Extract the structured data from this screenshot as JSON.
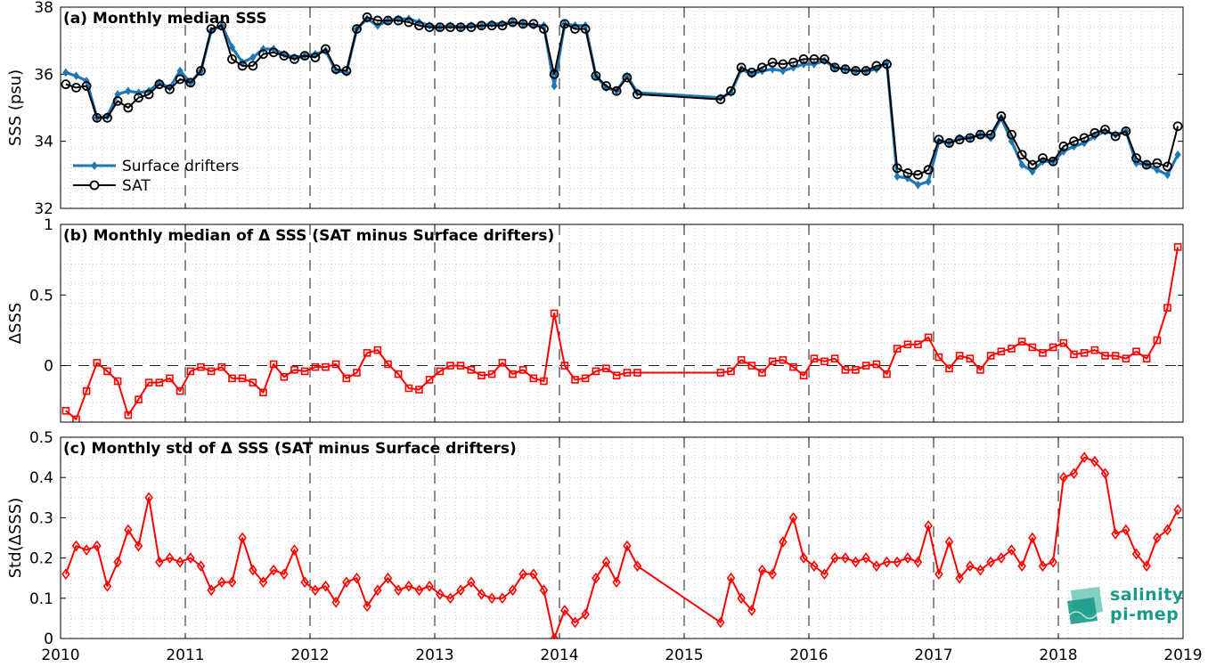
{
  "logo": {
    "line1": "salinity",
    "line2": "pi-mep",
    "color": "#1a9a8a"
  },
  "colors": {
    "drifters": "#1f77b4",
    "sat": "#000000",
    "delta": "#ff0000",
    "grid": "#b0b0b0"
  },
  "chart_data": [
    {
      "type": "line",
      "title": "(a) Monthly median SSS",
      "ylabel": "SSS (psu)",
      "xlabel": "",
      "xlim": [
        2010,
        2019
      ],
      "ylim": [
        32,
        38
      ],
      "yticks": [
        32,
        34,
        36,
        38
      ],
      "xticks": [
        2010,
        2011,
        2012,
        2013,
        2014,
        2015,
        2016,
        2017,
        2018,
        2019
      ],
      "grid": "dotted",
      "legend_position": "bottom-left",
      "x": [
        2010.042,
        2010.125,
        2010.208,
        2010.292,
        2010.375,
        2010.458,
        2010.542,
        2010.625,
        2010.708,
        2010.792,
        2010.875,
        2010.958,
        2011.042,
        2011.125,
        2011.208,
        2011.292,
        2011.375,
        2011.458,
        2011.542,
        2011.625,
        2011.708,
        2011.792,
        2011.875,
        2011.958,
        2012.042,
        2012.125,
        2012.208,
        2012.292,
        2012.375,
        2012.458,
        2012.542,
        2012.625,
        2012.708,
        2012.792,
        2012.875,
        2012.958,
        2013.042,
        2013.125,
        2013.208,
        2013.292,
        2013.375,
        2013.458,
        2013.542,
        2013.625,
        2013.708,
        2013.792,
        2013.875,
        2013.958,
        2014.042,
        2014.125,
        2014.208,
        2014.292,
        2014.375,
        2014.458,
        2014.542,
        2014.625,
        2015.292,
        2015.375,
        2015.458,
        2015.542,
        2015.625,
        2015.708,
        2015.792,
        2015.875,
        2015.958,
        2016.042,
        2016.125,
        2016.208,
        2016.292,
        2016.375,
        2016.458,
        2016.542,
        2016.625,
        2016.708,
        2016.792,
        2016.875,
        2016.958,
        2017.042,
        2017.125,
        2017.208,
        2017.292,
        2017.375,
        2017.458,
        2017.542,
        2017.625,
        2017.708,
        2017.792,
        2017.875,
        2017.958,
        2018.042,
        2018.125,
        2018.208,
        2018.292,
        2018.375,
        2018.458,
        2018.542,
        2018.625,
        2018.708,
        2018.792,
        2018.875,
        2018.958
      ],
      "series": [
        {
          "name": "Surface drifters",
          "marker": "diamond",
          "color": "#1f77b4",
          "values": [
            36.05,
            35.95,
            35.8,
            34.7,
            34.75,
            35.4,
            35.5,
            35.45,
            35.5,
            35.75,
            35.6,
            36.1,
            35.75,
            36.1,
            37.3,
            37.45,
            36.8,
            36.35,
            36.5,
            36.75,
            36.75,
            36.6,
            36.5,
            36.55,
            36.6,
            36.7,
            36.1,
            36.05,
            37.35,
            37.65,
            37.45,
            37.6,
            37.65,
            37.65,
            37.55,
            37.45,
            37.4,
            37.45,
            37.4,
            37.45,
            37.45,
            37.5,
            37.5,
            37.55,
            37.5,
            37.45,
            37.45,
            35.65,
            37.5,
            37.45,
            37.45,
            35.95,
            35.6,
            35.5,
            35.95,
            35.45,
            35.3,
            35.45,
            36.15,
            36.0,
            36.1,
            36.15,
            36.1,
            36.2,
            36.3,
            36.3,
            36.4,
            36.2,
            36.15,
            36.1,
            36.1,
            36.15,
            36.35,
            32.95,
            32.9,
            32.7,
            32.8,
            34.0,
            33.95,
            34.1,
            34.1,
            34.2,
            34.1,
            34.7,
            34.0,
            33.3,
            33.1,
            33.4,
            33.4,
            33.7,
            33.85,
            33.95,
            34.15,
            34.3,
            34.2,
            34.3,
            33.35,
            33.3,
            33.15,
            33.0,
            33.6
          ]
        },
        {
          "name": "SAT",
          "marker": "circle",
          "color": "#000000",
          "values": [
            35.7,
            35.6,
            35.65,
            34.7,
            34.7,
            35.2,
            35.0,
            35.3,
            35.4,
            35.7,
            35.55,
            35.85,
            35.75,
            36.1,
            37.35,
            37.45,
            36.45,
            36.25,
            36.25,
            36.6,
            36.65,
            36.55,
            36.45,
            36.55,
            36.5,
            36.75,
            36.15,
            36.1,
            37.35,
            37.7,
            37.6,
            37.6,
            37.6,
            37.55,
            37.45,
            37.4,
            37.4,
            37.4,
            37.4,
            37.4,
            37.45,
            37.45,
            37.45,
            37.55,
            37.5,
            37.5,
            37.35,
            36.0,
            37.5,
            37.35,
            37.35,
            35.95,
            35.65,
            35.5,
            35.9,
            35.4,
            35.25,
            35.5,
            36.2,
            36.05,
            36.2,
            36.35,
            36.3,
            36.35,
            36.45,
            36.45,
            36.45,
            36.2,
            36.15,
            36.1,
            36.1,
            36.25,
            36.3,
            33.2,
            33.05,
            33.0,
            33.15,
            34.05,
            33.95,
            34.05,
            34.1,
            34.2,
            34.2,
            34.75,
            34.2,
            33.6,
            33.3,
            33.5,
            33.4,
            33.85,
            34.0,
            34.1,
            34.25,
            34.35,
            34.15,
            34.3,
            33.5,
            33.3,
            33.35,
            33.25,
            34.45
          ]
        }
      ]
    },
    {
      "type": "line",
      "title": "(b) Monthly median of Δ SSS (SAT minus Surface drifters)",
      "ylabel": "ΔSSS",
      "xlabel": "",
      "xlim": [
        2010,
        2019
      ],
      "ylim": [
        -0.4,
        1
      ],
      "yticks": [
        0,
        0.5,
        1
      ],
      "ytick_labels": [
        "0",
        "0.5",
        "1"
      ],
      "xticks": [
        2010,
        2011,
        2012,
        2013,
        2014,
        2015,
        2016,
        2017,
        2018,
        2019
      ],
      "grid": "dotted",
      "reference_line": 0,
      "series": [
        {
          "name": "",
          "marker": "square",
          "color": "#ff0000",
          "values": [
            -0.32,
            -0.38,
            -0.18,
            0.02,
            -0.04,
            -0.11,
            -0.35,
            -0.24,
            -0.12,
            -0.12,
            -0.09,
            -0.18,
            -0.04,
            -0.01,
            -0.04,
            -0.01,
            -0.09,
            -0.09,
            -0.12,
            -0.19,
            0.01,
            -0.08,
            -0.03,
            -0.04,
            -0.01,
            -0.01,
            0.01,
            -0.09,
            -0.05,
            0.09,
            0.11,
            0.01,
            -0.06,
            -0.16,
            -0.17,
            -0.1,
            -0.04,
            0.0,
            0.0,
            -0.03,
            -0.07,
            -0.06,
            0.02,
            -0.06,
            -0.03,
            -0.09,
            -0.11,
            0.37,
            0.0,
            -0.1,
            -0.09,
            -0.04,
            -0.02,
            -0.07,
            -0.05,
            -0.05,
            -0.05,
            -0.04,
            0.04,
            0.0,
            -0.05,
            0.03,
            0.04,
            -0.01,
            -0.07,
            0.05,
            0.03,
            0.05,
            -0.03,
            -0.03,
            0.0,
            0.01,
            -0.06,
            0.12,
            0.15,
            0.15,
            0.2,
            0.06,
            -0.02,
            0.07,
            0.05,
            -0.03,
            0.07,
            0.1,
            0.12,
            0.17,
            0.13,
            0.09,
            0.13,
            0.16,
            0.08,
            0.09,
            0.11,
            0.07,
            0.07,
            0.05,
            0.1,
            0.05,
            0.18,
            0.41,
            0.84
          ]
        }
      ]
    },
    {
      "type": "line",
      "title": "(c) Monthly std of Δ SSS (SAT minus Surface drifters)",
      "ylabel": "Std(ΔSSS)",
      "xlabel": "",
      "xlim": [
        2010,
        2019
      ],
      "ylim": [
        0,
        0.5
      ],
      "yticks": [
        0,
        0.1,
        0.2,
        0.3,
        0.4,
        0.5
      ],
      "ytick_labels": [
        "0",
        "0.1",
        "0.2",
        "0.3",
        "0.4",
        "0.5"
      ],
      "xticks": [
        2010,
        2011,
        2012,
        2013,
        2014,
        2015,
        2016,
        2017,
        2018,
        2019
      ],
      "xtick_labels": [
        "2010",
        "2011",
        "2012",
        "2013",
        "2014",
        "2015",
        "2016",
        "2017",
        "2018",
        "2019"
      ],
      "grid": "dotted",
      "series": [
        {
          "name": "",
          "marker": "diamond",
          "color": "#ff0000",
          "values": [
            0.16,
            0.23,
            0.22,
            0.23,
            0.13,
            0.19,
            0.27,
            0.23,
            0.35,
            0.19,
            0.2,
            0.19,
            0.2,
            0.18,
            0.12,
            0.14,
            0.14,
            0.25,
            0.17,
            0.14,
            0.17,
            0.16,
            0.22,
            0.14,
            0.12,
            0.13,
            0.09,
            0.14,
            0.15,
            0.08,
            0.12,
            0.15,
            0.12,
            0.13,
            0.12,
            0.13,
            0.11,
            0.1,
            0.12,
            0.14,
            0.11,
            0.1,
            0.1,
            0.12,
            0.16,
            0.16,
            0.12,
            0.0,
            0.07,
            0.04,
            0.06,
            0.15,
            0.19,
            0.14,
            0.23,
            0.18,
            0.04,
            0.15,
            0.1,
            0.07,
            0.17,
            0.16,
            0.24,
            0.3,
            0.2,
            0.18,
            0.16,
            0.2,
            0.2,
            0.19,
            0.2,
            0.18,
            0.19,
            0.19,
            0.2,
            0.19,
            0.28,
            0.16,
            0.24,
            0.15,
            0.18,
            0.17,
            0.19,
            0.2,
            0.22,
            0.18,
            0.25,
            0.18,
            0.19,
            0.4,
            0.41,
            0.45,
            0.44,
            0.41,
            0.26,
            0.27,
            0.21,
            0.18,
            0.25,
            0.27,
            0.32
          ]
        }
      ]
    }
  ]
}
